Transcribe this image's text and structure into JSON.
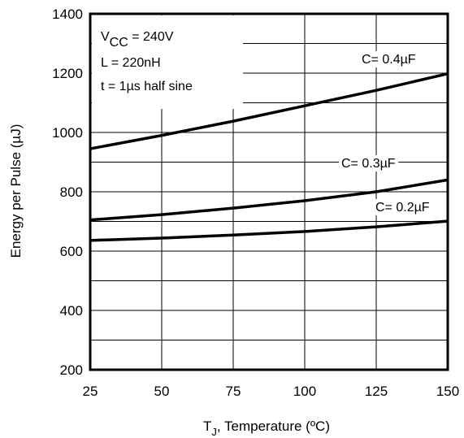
{
  "chart_data": {
    "type": "line",
    "xlabel_main": "T",
    "xlabel_sub": "J",
    "xlabel_rest": ", Temperature (ºC)",
    "ylabel": "Energy per Pulse (µJ)",
    "xlim": [
      25,
      150
    ],
    "ylim": [
      200,
      1400
    ],
    "x_ticks": [
      25,
      50,
      75,
      100,
      125,
      150
    ],
    "y_ticks": [
      200,
      400,
      600,
      800,
      1000,
      1200,
      1400
    ],
    "grid": true,
    "annotations": {
      "vcc_main": "V",
      "vcc_sub": "CC",
      "vcc_rest": " = 240V",
      "inductance": "L = 220nH",
      "pulse": "t = 1µs half sine"
    },
    "series": [
      {
        "name": "C= 0.4µF",
        "x": [
          25,
          50,
          75,
          100,
          125,
          150
        ],
        "values": [
          945,
          990,
          1038,
          1090,
          1142,
          1198
        ]
      },
      {
        "name": "C= 0.3µF",
        "x": [
          25,
          50,
          75,
          100,
          125,
          150
        ],
        "values": [
          705,
          723,
          745,
          770,
          800,
          840
        ]
      },
      {
        "name": "C= 0.2µF",
        "x": [
          25,
          50,
          75,
          100,
          125,
          150
        ],
        "values": [
          636,
          644,
          654,
          666,
          682,
          701
        ]
      }
    ]
  }
}
